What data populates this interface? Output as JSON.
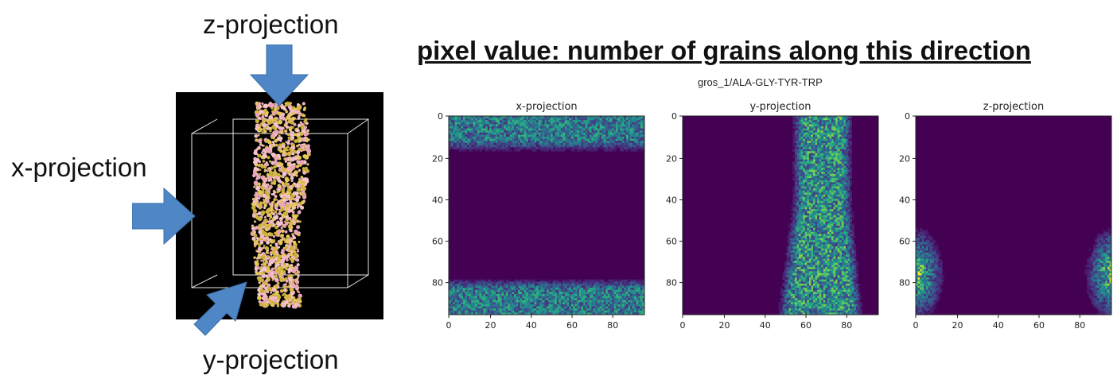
{
  "diagram": {
    "labels": {
      "z": "z-projection",
      "x": "x-projection",
      "y": "y-projection"
    },
    "arrow_color": "#4f86c6",
    "box_color": "#000000"
  },
  "figure": {
    "headline": "pixel value: number of grains along this direction",
    "suptitle": "gros_1/ALA-GLY-TYR-TRP",
    "colormap": "viridis",
    "grid": 96,
    "ticks": [
      "0",
      "20",
      "40",
      "60",
      "80"
    ]
  },
  "chart_data": [
    {
      "type": "heatmap",
      "title": "x-projection",
      "xlim": [
        0,
        96
      ],
      "ylim": [
        96,
        0
      ],
      "xticks": [
        0,
        20,
        40,
        60,
        80
      ],
      "yticks": [
        0,
        20,
        40,
        60,
        80
      ]
    },
    {
      "type": "heatmap",
      "title": "y-projection",
      "xlim": [
        0,
        96
      ],
      "ylim": [
        96,
        0
      ],
      "xticks": [
        0,
        20,
        40,
        60,
        80
      ],
      "yticks": [
        0,
        20,
        40,
        60,
        80
      ]
    },
    {
      "type": "heatmap",
      "title": "z-projection",
      "xlim": [
        0,
        96
      ],
      "ylim": [
        96,
        0
      ],
      "xticks": [
        0,
        20,
        40,
        60,
        80
      ],
      "yticks": [
        0,
        20,
        40,
        60,
        80
      ]
    }
  ]
}
